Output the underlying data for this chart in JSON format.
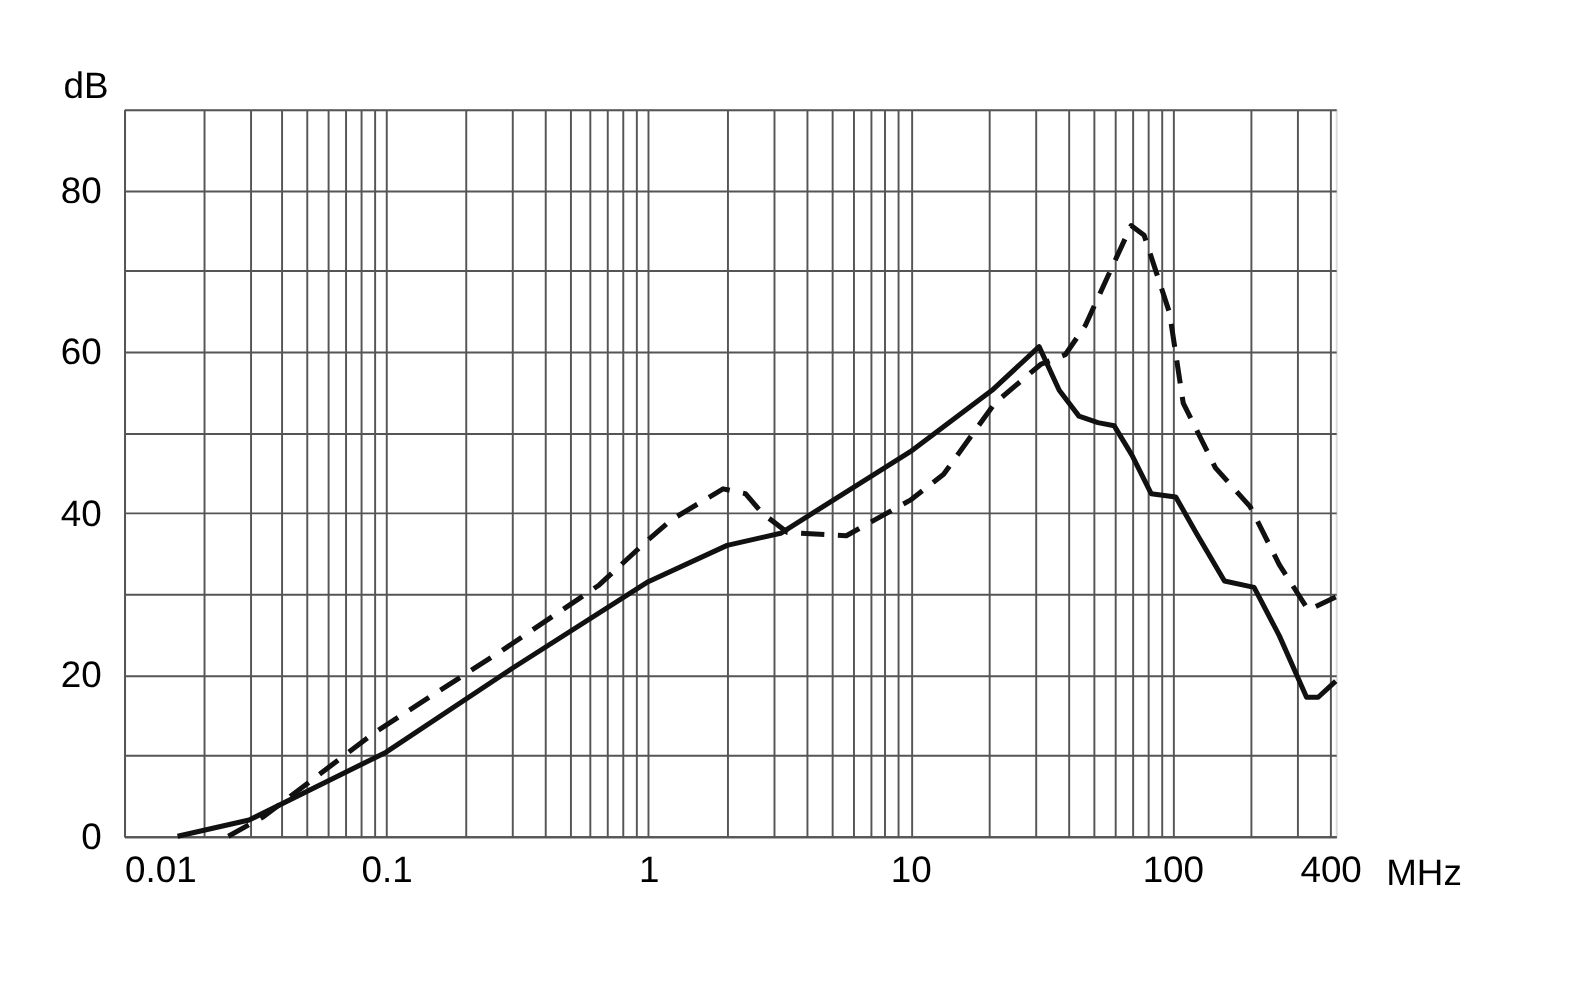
{
  "chart_data": {
    "type": "line",
    "xlabel": "MHz",
    "ylabel": "dB",
    "log": "x",
    "grid": true,
    "marker": "none",
    "xlim": [
      0.01,
      420
    ],
    "ylim": [
      0,
      90
    ],
    "xticks": [
      0.01,
      {
        "value": 0.02,
        "label": null
      },
      {
        "value": 0.03,
        "label": null
      },
      {
        "value": 0.04,
        "label": null
      },
      {
        "value": 0.05,
        "label": null
      },
      {
        "value": 0.06,
        "label": null
      },
      {
        "value": 0.07,
        "label": null
      },
      {
        "value": 0.08,
        "label": null
      },
      {
        "value": 0.09,
        "label": null
      },
      0.1,
      {
        "value": 0.2,
        "label": null
      },
      {
        "value": 0.3,
        "label": null
      },
      {
        "value": 0.4,
        "label": null
      },
      {
        "value": 0.5,
        "label": null
      },
      {
        "value": 0.6,
        "label": null
      },
      {
        "value": 0.7,
        "label": null
      },
      {
        "value": 0.8,
        "label": null
      },
      {
        "value": 0.9,
        "label": null
      },
      1,
      {
        "value": 2,
        "label": null
      },
      {
        "value": 3,
        "label": null
      },
      {
        "value": 4,
        "label": null
      },
      {
        "value": 5,
        "label": null
      },
      {
        "value": 6,
        "label": null
      },
      {
        "value": 7,
        "label": null
      },
      {
        "value": 8,
        "label": null
      },
      {
        "value": 9,
        "label": null
      },
      10,
      {
        "value": 20,
        "label": null
      },
      {
        "value": 30,
        "label": null
      },
      {
        "value": 40,
        "label": null
      },
      {
        "value": 50,
        "label": null
      },
      {
        "value": 60,
        "label": null
      },
      {
        "value": 70,
        "label": null
      },
      {
        "value": 80,
        "label": null
      },
      {
        "value": 90,
        "label": null
      },
      100,
      {
        "value": 200,
        "label": null
      },
      {
        "value": 300,
        "label": null
      },
      400
    ],
    "yticks": [
      0,
      {
        "value": 10,
        "label": null
      },
      20,
      {
        "value": 30,
        "label": null
      },
      40,
      {
        "value": 50,
        "label": null
      },
      60,
      {
        "value": 70,
        "label": null
      },
      80,
      {
        "value": 90,
        "label": null
      }
    ],
    "series": [
      {
        "color": "#111111",
        "line_style": "solid",
        "x": [
          0.016,
          0.03,
          0.1,
          0.3,
          1,
          2,
          3.2,
          10,
          20.5,
          31,
          37,
          44,
          52,
          60,
          70,
          83,
          103,
          123,
          158,
          205,
          256,
          325,
          360,
          420
        ],
        "values": [
          0,
          2,
          10.4,
          20.7,
          31.5,
          36,
          37.5,
          47.6,
          55.2,
          60.6,
          55.2,
          52,
          51.2,
          50.8,
          47.2,
          42.4,
          42,
          37.6,
          31.6,
          30.8,
          24.8,
          17.2,
          17.2,
          19.2
        ]
      },
      {
        "color": "#111111",
        "line_style": "dashed",
        "x": [
          0.025,
          0.034,
          0.09,
          0.28,
          0.65,
          1,
          1.23,
          1.93,
          2.35,
          2.72,
          3.4,
          5.7,
          10,
          13.4,
          21,
          31.4,
          39,
          46.5,
          69.6,
          78,
          97.5,
          110,
          146,
          198,
          256,
          330,
          420
        ],
        "values": [
          0,
          2.4,
          12.8,
          23.1,
          31.1,
          36.7,
          39.2,
          43,
          42.4,
          40,
          37.6,
          37.2,
          41.6,
          44.8,
          53.6,
          58.4,
          59.6,
          63.2,
          75.6,
          74.4,
          64.8,
          53.6,
          45.6,
          40.8,
          33.6,
          28,
          29.6
        ]
      }
    ]
  }
}
